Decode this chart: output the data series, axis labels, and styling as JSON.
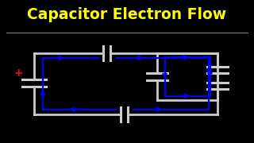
{
  "title": "Capacitor Electron Flow",
  "title_color": "#FFFF00",
  "bg_color": "#000000",
  "wire_color": "#CCCCCC",
  "flow_color": "#0000EE",
  "plus_color": "#FF0000",
  "title_fontsize": 13.5,
  "wire_lw": 2.0,
  "flow_lw": 1.6,
  "L": 0.13,
  "R": 0.86,
  "T": 0.63,
  "B": 0.2,
  "IL": 0.62,
  "IR": 0.86,
  "IT": 0.63,
  "IB": 0.3
}
